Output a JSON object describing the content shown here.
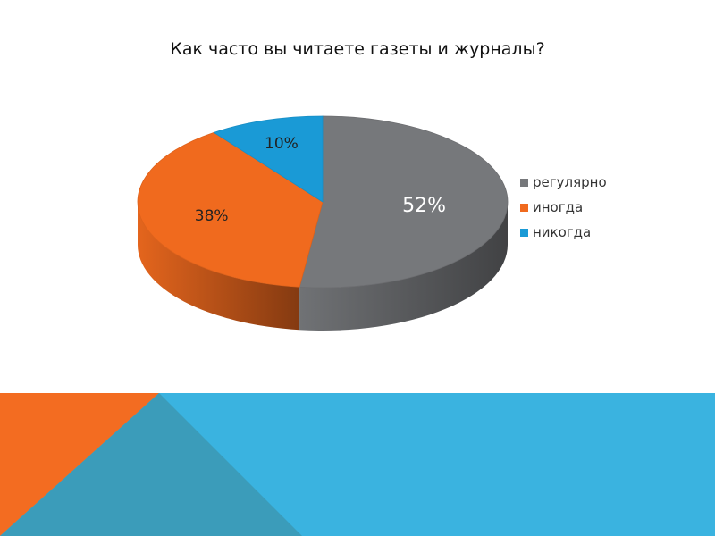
{
  "chart_data": {
    "type": "pie",
    "title": "Как часто вы читаете газеты и журналы?",
    "categories": [
      "регулярно",
      "иногда",
      "никогда"
    ],
    "values": [
      52,
      38,
      10
    ],
    "labels": [
      "52%",
      "38%",
      "10%"
    ],
    "colors": [
      "#76787b",
      "#f06a1e",
      "#1a9ad6"
    ],
    "legend": "right",
    "style": "3d"
  },
  "theme": {
    "footer_orange": "#f36c21",
    "footer_blue": "#3ab3e0",
    "footer_teal": "#3b9cba"
  }
}
